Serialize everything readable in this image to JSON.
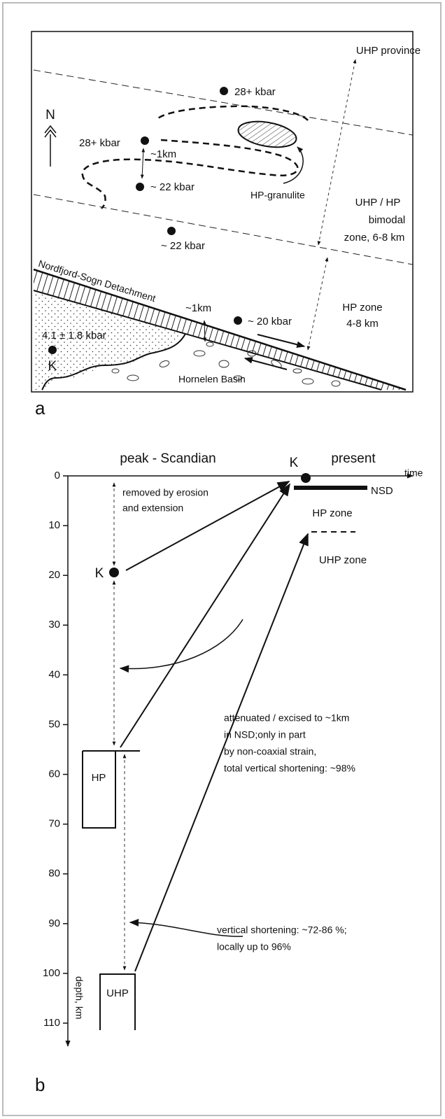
{
  "panel_a": {
    "label": "a",
    "north": "N",
    "uhp_province": "UHP province",
    "pressures": [
      "28+ kbar",
      "28+ kbar",
      "~ 22 kbar",
      "~ 22 kbar",
      "~ 20 kbar"
    ],
    "thickness_labels": [
      "~1km",
      "~1km"
    ],
    "hp_granulite": "HP-granulite",
    "bimodal_zone": [
      "UHP / HP",
      "bimodal",
      "zone, 6-8 km"
    ],
    "hp_zone": [
      "HP zone",
      "4-8 km"
    ],
    "detachment": "Nordfjord-Sogn Detachment",
    "kbar_k": "4.1 ± 1.8 kbar",
    "k": "K",
    "basin": "Hornelen Basin"
  },
  "panel_b": {
    "label": "b",
    "time_axis": "time",
    "peak": "peak - Scandian",
    "present": "present",
    "k_labels": [
      "K",
      "K"
    ],
    "nsd": "NSD",
    "hp_zone": "HP zone",
    "uhp_zone": "UHP zone",
    "erosion_note": [
      "removed by erosion",
      "and extension"
    ],
    "attenuation_note": [
      "attenuated / excised to ~1km",
      "in NSD;only  in part",
      "by non-coaxial strain,",
      "total vertical shortening: ~98%"
    ],
    "shortening_note": [
      "vertical shortening: ~72-86 %;",
      "locally up to 96%"
    ],
    "hp_box": "HP",
    "uhp_box": "UHP",
    "depth_axis": {
      "title": "depth, km",
      "ticks": [
        0,
        10,
        20,
        30,
        40,
        50,
        60,
        70,
        80,
        90,
        100,
        110
      ]
    }
  }
}
